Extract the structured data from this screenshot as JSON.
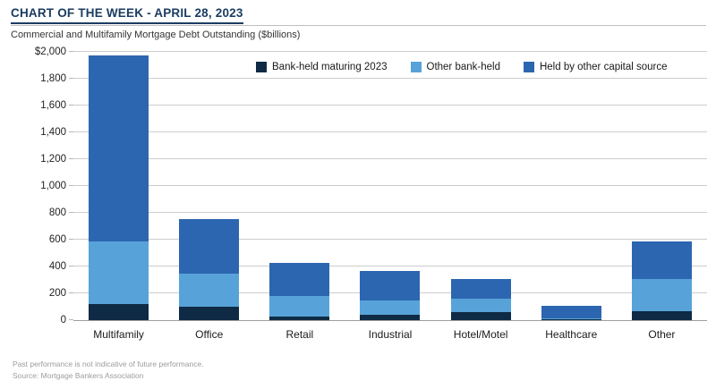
{
  "header": {
    "title": "CHART OF THE WEEK - APRIL 28, 2023",
    "subtitle": "Commercial and Multifamily Mortgage Debt Outstanding ($billions)"
  },
  "chart_data": {
    "type": "bar",
    "stacked": true,
    "title": "Commercial and Multifamily Mortgage Debt Outstanding ($billions)",
    "categories": [
      "Multifamily",
      "Office",
      "Retail",
      "Industrial",
      "Hotel/Motel",
      "Healthcare",
      "Other"
    ],
    "series": [
      {
        "name": "Bank-held maturing 2023",
        "color": "#0e2a45",
        "values": [
          120,
          100,
          30,
          40,
          60,
          5,
          70
        ]
      },
      {
        "name": "Other bank-held",
        "color": "#57a3d9",
        "values": [
          465,
          250,
          150,
          110,
          100,
          10,
          235
        ]
      },
      {
        "name": "Held by other capital source",
        "color": "#2d66b0",
        "values": [
          1390,
          405,
          250,
          215,
          150,
          90,
          280
        ]
      }
    ],
    "totals": [
      1975,
      755,
      430,
      365,
      310,
      105,
      585
    ],
    "xlabel": "",
    "ylabel": "",
    "ylim": [
      0,
      2000
    ],
    "ytick_step": 200,
    "yticks": [
      {
        "v": 2000,
        "label": "$2,000"
      },
      {
        "v": 1800,
        "label": "1,800"
      },
      {
        "v": 1600,
        "label": "1,600"
      },
      {
        "v": 1400,
        "label": "1,400"
      },
      {
        "v": 1200,
        "label": "1,200"
      },
      {
        "v": 1000,
        "label": "1,000"
      },
      {
        "v": 800,
        "label": "800"
      },
      {
        "v": 600,
        "label": "600"
      },
      {
        "v": 400,
        "label": "400"
      },
      {
        "v": 200,
        "label": "200"
      },
      {
        "v": 0,
        "label": "0"
      }
    ],
    "grid": "horizontal",
    "legend_position": "top-inside",
    "colors": {
      "title_navy": "#1b3c60",
      "gridline": "#cdcdcd",
      "axis": "#9e9e9e"
    }
  },
  "footer": {
    "disclaimer": "Past performance is not indicative of future performance.",
    "source": "Source: Mortgage Bankers Association"
  }
}
